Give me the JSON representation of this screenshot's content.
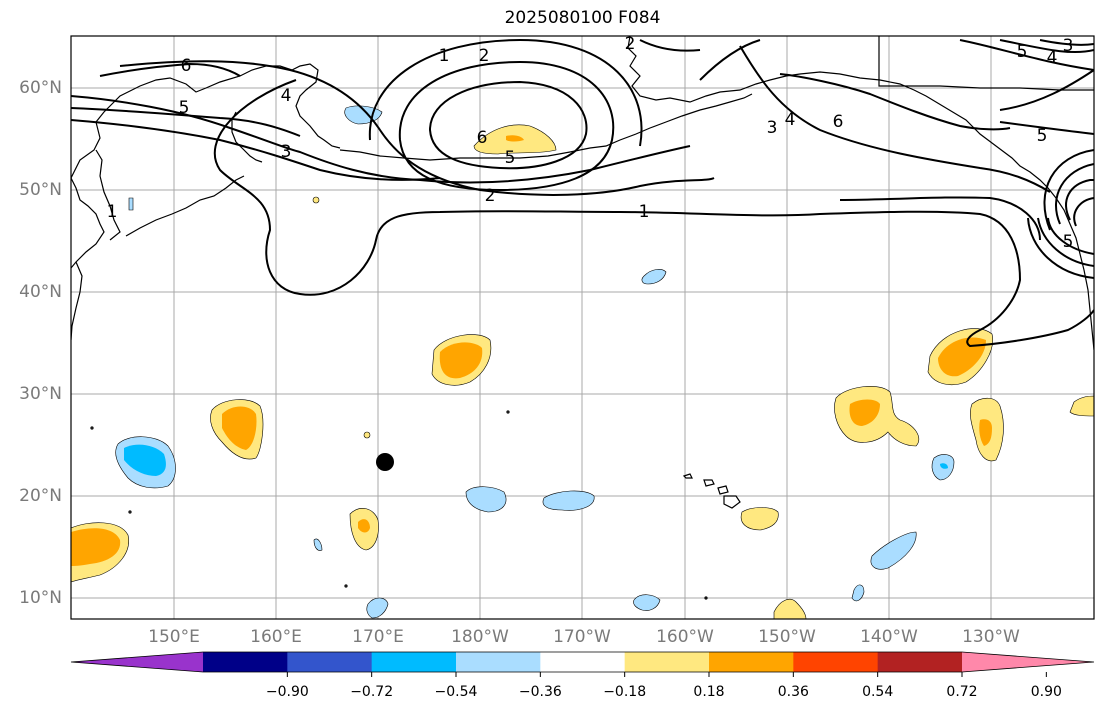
{
  "title": "2025080100 F084",
  "lat_labels": [
    "60°N",
    "50°N",
    "40°N",
    "30°N",
    "20°N",
    "10°N"
  ],
  "lon_labels": [
    "150°E",
    "160°E",
    "170°E",
    "180°W",
    "170°W",
    "160°W",
    "150°W",
    "140°W",
    "130°W"
  ],
  "colorbar": {
    "colors": [
      "#9933cc",
      "#000088",
      "#3355cc",
      "#00bbff",
      "#aaddff",
      "#ffffff",
      "#ffe880",
      "#ffa500",
      "#ff4400",
      "#b22222",
      "#ff88aa"
    ],
    "tick_labels": [
      "−0.90",
      "−0.72",
      "−0.54",
      "−0.36",
      "−0.18",
      "0.18",
      "0.36",
      "0.54",
      "0.72",
      "0.90"
    ]
  },
  "contour_labels": [
    "6",
    "5",
    "4",
    "3",
    "2",
    "1",
    "6",
    "5",
    "2",
    "1",
    "5",
    "4",
    "3",
    "4",
    "6",
    "3",
    "5",
    "1",
    "2",
    "5"
  ],
  "marker": {
    "lat": "23°N",
    "lon": "171°E",
    "type": "filled-circle"
  }
}
